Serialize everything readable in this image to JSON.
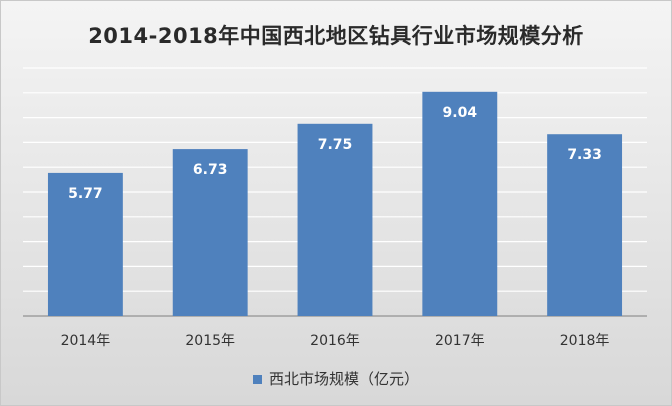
{
  "chart_data": {
    "type": "bar",
    "title": "2014-2018年中国西北地区钻具行业市场规模分析",
    "categories": [
      "2014年",
      "2015年",
      "2016年",
      "2017年",
      "2018年"
    ],
    "series": [
      {
        "name": "西北市场规模（亿元）",
        "values": [
          5.77,
          6.73,
          7.75,
          9.04,
          7.33
        ]
      }
    ],
    "ylim": [
      0,
      10
    ],
    "grid": true,
    "legend": "bottom",
    "colors": {
      "bar": "#4f81bd",
      "label": "#ffffff",
      "grid": "#ffffff",
      "axis": "#7f7f7f"
    }
  }
}
